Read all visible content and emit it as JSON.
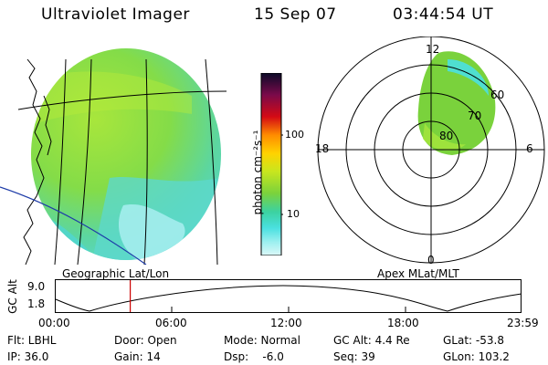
{
  "header": {
    "instrument": "Ultraviolet Imager",
    "date": "15 Sep 07",
    "time": "03:44:54 UT"
  },
  "colorbar": {
    "unit_label": "photon cm⁻²s⁻¹",
    "ticks": [
      "100",
      "10"
    ],
    "colors": [
      "#0a0a28",
      "#7a0a4a",
      "#d40a14",
      "#ff8c00",
      "#ffd200",
      "#c8e61e",
      "#7ad23c",
      "#3cd2a0",
      "#4ae0e0",
      "#a0f0f0",
      "#dcf8f8"
    ]
  },
  "maps": {
    "geo_label": "Geographic Lat/Lon",
    "polar_label": "Apex MLat/MLT",
    "polar_hours": {
      "top": "12",
      "left": "18",
      "right": "6",
      "bottom": "0"
    },
    "polar_lats": [
      "60",
      "70",
      "80"
    ]
  },
  "altitude_plot": {
    "ylabel": "GC Alt",
    "yticks": [
      "9.0",
      "1.8"
    ],
    "xticks": [
      "00:00",
      "06:00",
      "12:00",
      "18:00",
      "23:59"
    ],
    "current_time_fraction": 0.16,
    "marker_color": "#cc0000"
  },
  "status": {
    "flt": "Flt: LBHL",
    "ip": "IP: 36.0",
    "door": "Door: Open",
    "gain": "Gain: 14",
    "mode": "Mode: Normal",
    "dsp": "Dsp:    -6.0",
    "gc_alt": "GC Alt: 4.4 Re",
    "seq": "Seq: 39",
    "glat": "GLat: -53.8",
    "glon": "GLon: 103.2"
  }
}
